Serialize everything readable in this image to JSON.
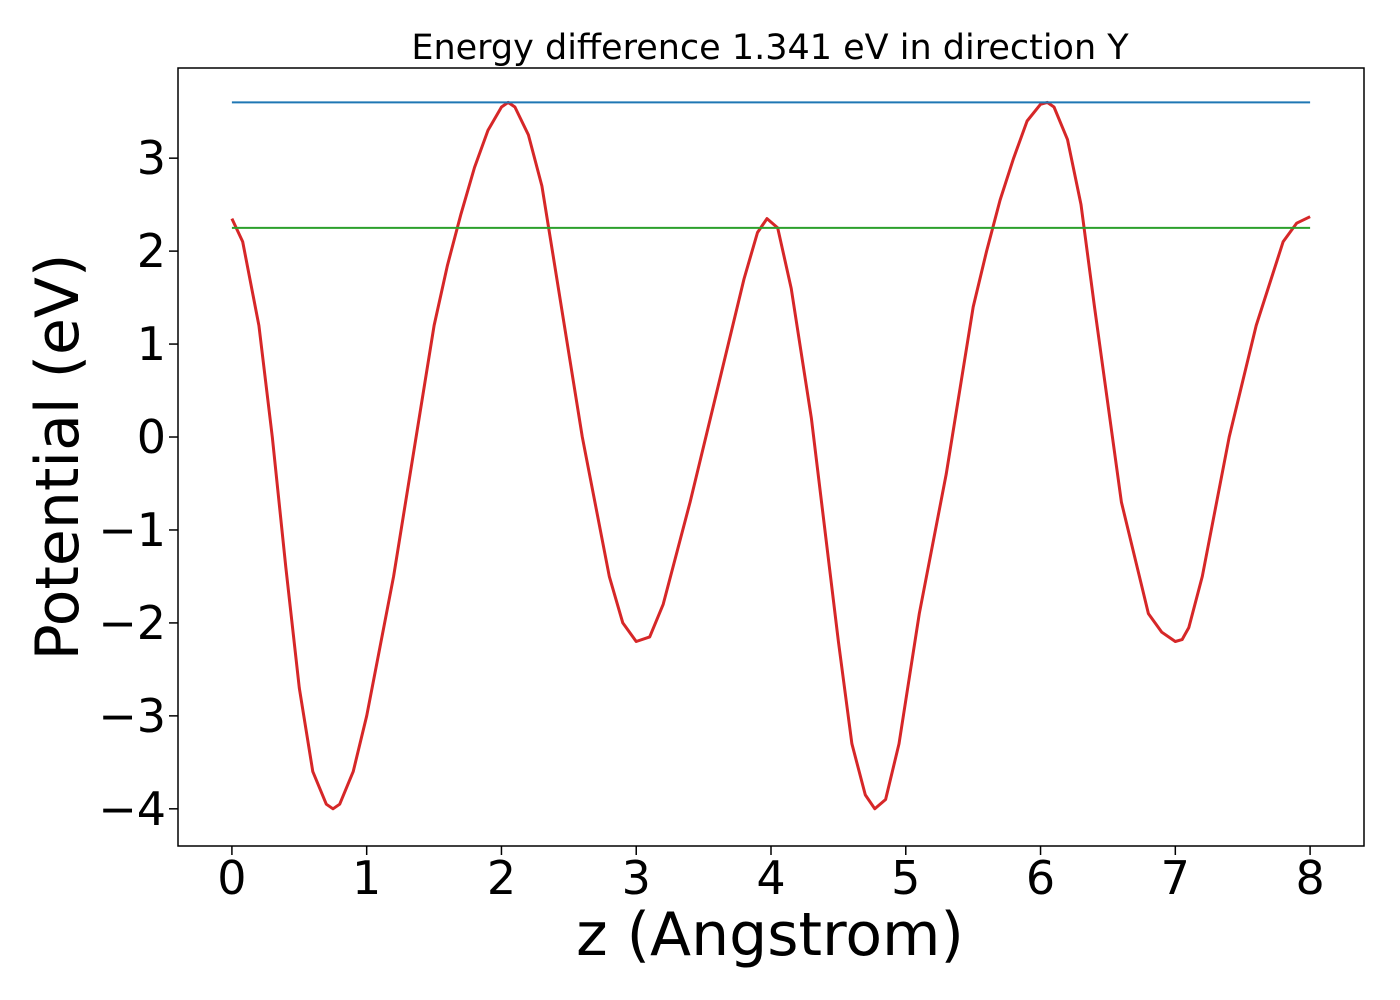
{
  "chart_data": {
    "type": "line",
    "title": "Energy difference 1.341 eV in direction Y",
    "xlabel": "z (Angstrom)",
    "ylabel": "Potential (eV)",
    "xlim": [
      -0.4,
      8.4
    ],
    "ylim": [
      -4.4,
      3.97
    ],
    "x_ticks": [
      0,
      1,
      2,
      3,
      4,
      5,
      6,
      7,
      8
    ],
    "x_tick_labels": [
      "0",
      "1",
      "2",
      "3",
      "4",
      "5",
      "6",
      "7",
      "8"
    ],
    "y_ticks": [
      -4,
      -3,
      -2,
      -1,
      0,
      1,
      2,
      3
    ],
    "y_tick_labels": [
      "−4",
      "−3",
      "−2",
      "−1",
      "0",
      "1",
      "2",
      "3"
    ],
    "grid": false,
    "legend": "none",
    "series": [
      {
        "color": "#d62728",
        "x": [
          0,
          0.08,
          0.2,
          0.3,
          0.4,
          0.5,
          0.6,
          0.7,
          0.75,
          0.8,
          0.9,
          1.0,
          1.2,
          1.4,
          1.5,
          1.6,
          1.7,
          1.8,
          1.9,
          2.0,
          2.05,
          2.1,
          2.2,
          2.3,
          2.4,
          2.6,
          2.8,
          2.9,
          3.0,
          3.1,
          3.2,
          3.4,
          3.6,
          3.8,
          3.9,
          3.97,
          4.05,
          4.15,
          4.3,
          4.5,
          4.6,
          4.7,
          4.77,
          4.85,
          4.95,
          5.1,
          5.3,
          5.5,
          5.6,
          5.7,
          5.8,
          5.9,
          6.0,
          6.05,
          6.1,
          6.2,
          6.3,
          6.4,
          6.6,
          6.8,
          6.9,
          7.0,
          7.05,
          7.1,
          7.2,
          7.4,
          7.6,
          7.8,
          7.9,
          8.0
        ],
        "y": [
          2.35,
          2.1,
          1.2,
          0.0,
          -1.4,
          -2.7,
          -3.6,
          -3.95,
          -4.0,
          -3.95,
          -3.6,
          -3.0,
          -1.5,
          0.3,
          1.2,
          1.85,
          2.4,
          2.9,
          3.3,
          3.55,
          3.6,
          3.55,
          3.25,
          2.7,
          1.8,
          0.0,
          -1.5,
          -2.0,
          -2.2,
          -2.15,
          -1.8,
          -0.7,
          0.5,
          1.7,
          2.2,
          2.35,
          2.25,
          1.6,
          0.2,
          -2.2,
          -3.3,
          -3.85,
          -4.0,
          -3.9,
          -3.3,
          -1.9,
          -0.4,
          1.4,
          2.0,
          2.55,
          3.0,
          3.4,
          3.58,
          3.6,
          3.55,
          3.2,
          2.5,
          1.4,
          -0.7,
          -1.9,
          -2.1,
          -2.2,
          -2.18,
          -2.05,
          -1.5,
          0.0,
          1.2,
          2.1,
          2.3,
          2.37
        ]
      },
      {
        "color": "#1f77b4",
        "x": [
          0,
          8
        ],
        "y": [
          3.6,
          3.6
        ]
      },
      {
        "color": "#2ca02c",
        "x": [
          0,
          8
        ],
        "y": [
          2.25,
          2.25
        ]
      }
    ]
  }
}
